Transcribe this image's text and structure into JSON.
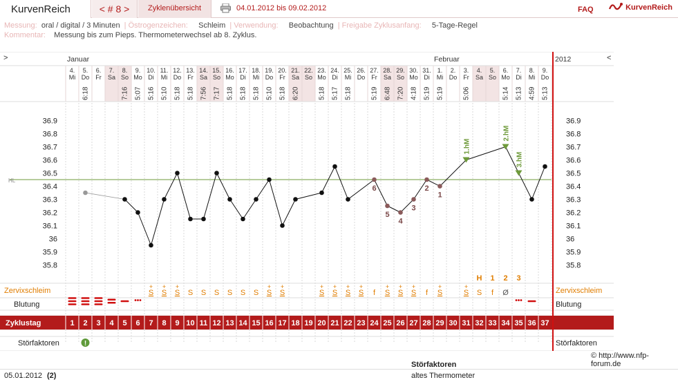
{
  "header": {
    "brand": "KurvenReich",
    "cycle_nav": "< # 8 >",
    "overview_tab": "Zyklenübersicht",
    "date_range": "04.01.2012 bis 09.02.2012",
    "faq": "FAQ",
    "logo_text": "KurvenReich",
    "print_icon": "printer-icon"
  },
  "meta": {
    "messung_label": "Messung:",
    "messung_value": "oral / digital / 3 Minuten",
    "oestrogen_label": "Östrogenzeichen:",
    "oestrogen_value": "Schleim",
    "verwendung_label": "Verwendung:",
    "verwendung_value": "Beobachtung",
    "freigabe_label": "Freigabe Zyklusanfang:",
    "freigabe_value": "5-Tage-Regel",
    "kommentar_label": "Kommentar:",
    "kommentar_value": "Messung bis zum Pieps. Thermometerwechsel ab 8. Zyklus."
  },
  "chart_data": {
    "type": "line",
    "month_labels": [
      "Januar",
      "Februar",
      "2012"
    ],
    "nav_left": ">",
    "nav_right": "<",
    "days": [
      {
        "d": "4.",
        "w": "Mi",
        "t": ""
      },
      {
        "d": "5.",
        "w": "Do",
        "t": "6:18"
      },
      {
        "d": "6.",
        "w": "Fr",
        "t": ""
      },
      {
        "d": "7.",
        "w": "Sa",
        "t": ""
      },
      {
        "d": "8.",
        "w": "So",
        "t": "7:16"
      },
      {
        "d": "9.",
        "w": "Mo",
        "t": "5:07"
      },
      {
        "d": "10.",
        "w": "Di",
        "t": "5:16"
      },
      {
        "d": "11.",
        "w": "Mi",
        "t": "5:10"
      },
      {
        "d": "12.",
        "w": "Do",
        "t": "5:18"
      },
      {
        "d": "13.",
        "w": "Fr",
        "t": "5:18"
      },
      {
        "d": "14.",
        "w": "Sa",
        "t": "7:56"
      },
      {
        "d": "15.",
        "w": "So",
        "t": "7:17"
      },
      {
        "d": "16.",
        "w": "Mo",
        "t": "5:18"
      },
      {
        "d": "17.",
        "w": "Di",
        "t": "5:18"
      },
      {
        "d": "18.",
        "w": "Mi",
        "t": "5:18"
      },
      {
        "d": "19.",
        "w": "Do",
        "t": "5:10"
      },
      {
        "d": "20.",
        "w": "Fr",
        "t": "5:18"
      },
      {
        "d": "21.",
        "w": "Sa",
        "t": "6:20"
      },
      {
        "d": "22.",
        "w": "So",
        "t": ""
      },
      {
        "d": "23.",
        "w": "Mo",
        "t": "5:18"
      },
      {
        "d": "24.",
        "w": "Di",
        "t": "5:17"
      },
      {
        "d": "25.",
        "w": "Mi",
        "t": "5:18"
      },
      {
        "d": "26.",
        "w": "Do",
        "t": ""
      },
      {
        "d": "27.",
        "w": "Fr",
        "t": "5:19"
      },
      {
        "d": "28.",
        "w": "Sa",
        "t": "6:48"
      },
      {
        "d": "29.",
        "w": "So",
        "t": "7:20"
      },
      {
        "d": "30.",
        "w": "Mo",
        "t": "4:18"
      },
      {
        "d": "31.",
        "w": "Di",
        "t": "5:19"
      },
      {
        "d": "1.",
        "w": "Mi",
        "t": "5:19"
      },
      {
        "d": "2.",
        "w": "Do",
        "t": ""
      },
      {
        "d": "3.",
        "w": "Fr",
        "t": "5:06"
      },
      {
        "d": "4.",
        "w": "Sa",
        "t": ""
      },
      {
        "d": "5.",
        "w": "So",
        "t": ""
      },
      {
        "d": "6.",
        "w": "Mo",
        "t": "5:14"
      },
      {
        "d": "7.",
        "w": "Di",
        "t": "5:13"
      },
      {
        "d": "8.",
        "w": "Mi",
        "t": "4:59"
      },
      {
        "d": "9.",
        "w": "Do",
        "t": "5:13"
      }
    ],
    "weekend_indices": [
      3,
      4,
      10,
      11,
      17,
      18,
      24,
      25,
      31,
      32
    ],
    "y_ticks": [
      36.9,
      36.8,
      36.7,
      36.6,
      36.5,
      36.4,
      36.3,
      36.2,
      36.1,
      36,
      35.9,
      35.8
    ],
    "ylim": [
      35.75,
      36.95
    ],
    "hl_label": "HL",
    "hl_value": 36.45,
    "first_point": {
      "day": 2,
      "value": 36.35
    },
    "series": [
      {
        "values": [
          null,
          36.35,
          null,
          null,
          36.3,
          36.2,
          35.95,
          36.3,
          36.5,
          36.15,
          36.15,
          36.5,
          36.3,
          36.15,
          36.3,
          36.45,
          36.1,
          36.3,
          null,
          36.35,
          36.55,
          36.3,
          null,
          36.45,
          36.25,
          36.2,
          36.3,
          36.45,
          36.4,
          null,
          36.6,
          null,
          null,
          36.7,
          36.5,
          36.3,
          36.55
        ]
      }
    ],
    "low_labels": [
      {
        "day": 24,
        "label": "6"
      },
      {
        "day": 25,
        "label": "5"
      },
      {
        "day": 26,
        "label": "4"
      },
      {
        "day": 27,
        "label": "3"
      },
      {
        "day": 28,
        "label": "2"
      },
      {
        "day": 29,
        "label": "1"
      }
    ],
    "high_markers": [
      {
        "day": 31,
        "label": "1.hM"
      },
      {
        "day": 34,
        "label": "2.hM"
      },
      {
        "day": 35,
        "label": "3.hM"
      }
    ],
    "peak_labels": [
      {
        "day": 32,
        "label": "H"
      },
      {
        "day": 33,
        "label": "1"
      },
      {
        "day": 34,
        "label": "2"
      },
      {
        "day": 35,
        "label": "3"
      }
    ],
    "mucus_label": "Zervixschleim",
    "mucus": [
      "",
      "",
      "",
      "",
      "",
      "",
      "S+",
      "S+",
      "S+",
      "S",
      "S",
      "S",
      "S",
      "S",
      "S",
      "S+",
      "S+",
      "",
      "",
      "S+",
      "S+",
      "S+",
      "S+",
      "f",
      "S+",
      "S+",
      "S+",
      "f",
      "S+",
      "",
      "S+",
      "S",
      "f",
      "Ø",
      "",
      "",
      ""
    ],
    "bleeding_label": "Blutung",
    "bleeding": [
      3,
      3,
      3,
      2,
      1,
      "dots",
      "",
      "",
      "",
      "",
      "",
      "",
      "",
      "",
      "",
      "",
      "",
      "",
      "",
      "",
      "",
      "",
      "",
      "",
      "",
      "",
      "",
      "",
      "",
      "",
      "",
      "",
      "",
      "",
      "dots",
      "1",
      ""
    ],
    "cycleday_label": "Zyklustag",
    "factors_label": "Störfaktoren",
    "factor_day": 2
  },
  "footer": {
    "copyright": "© http://www.nfp-forum.de",
    "date": "05.01.2012",
    "count": "(2)",
    "factors_title": "Störfaktoren",
    "factors_item": "altes Thermometer"
  }
}
